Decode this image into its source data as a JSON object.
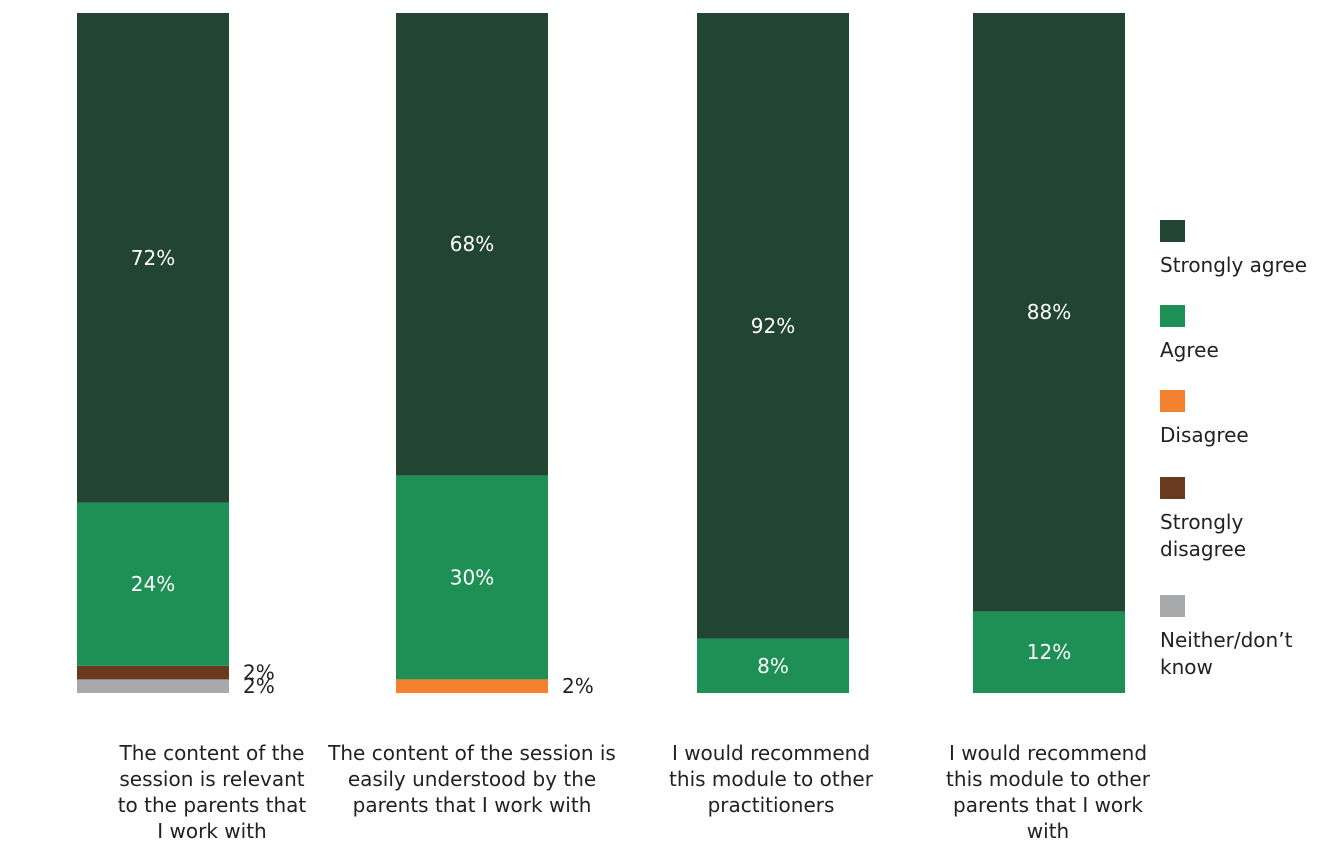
{
  "chart_data": {
    "type": "bar",
    "stacked": true,
    "categories": [
      "The content of the session is relevant to the parents that I work with",
      "The content of the session is easily understood by the parents that I work with",
      "I would recommend this module to other practitioners",
      "I would recommend this module to other parents that I work with"
    ],
    "series": [
      {
        "name": "Neither/don’t know",
        "color": "#a8a9ab",
        "values": [
          2,
          0,
          0,
          0
        ],
        "labels": [
          "2%",
          "",
          "",
          ""
        ]
      },
      {
        "name": "Strongly disagree",
        "color": "#6a3a1e",
        "values": [
          2,
          0,
          0,
          0
        ],
        "labels": [
          "2%",
          "",
          "",
          ""
        ]
      },
      {
        "name": "Disagree",
        "color": "#f4812f",
        "values": [
          0,
          2,
          0,
          0
        ],
        "labels": [
          "",
          "2%",
          "",
          ""
        ]
      },
      {
        "name": "Agree",
        "color": "#1e8f55",
        "values": [
          24,
          30,
          8,
          12
        ],
        "labels": [
          "24%",
          "30%",
          "8%",
          "12%"
        ]
      },
      {
        "name": "Strongly agree",
        "color": "#224433",
        "values": [
          72,
          68,
          92,
          88
        ],
        "labels": [
          "72%",
          "68%",
          "92%",
          "88%"
        ]
      }
    ],
    "ylim": [
      0,
      100
    ],
    "legend_position": "right",
    "grid": false
  },
  "legend": [
    {
      "label": "Strongly agree",
      "color": "#224433"
    },
    {
      "label": "Agree",
      "color": "#1e8f55"
    },
    {
      "label": "Disagree",
      "color": "#f4812f"
    },
    {
      "label": "Strongly disagree",
      "color": "#6a3a1e"
    },
    {
      "label": "Neither/don’t know",
      "color": "#a8a9ab"
    }
  ],
  "category_labels": [
    "The content of the session is relevant to the parents that I work with",
    "The content of the session is easily understood by the parents that I work with",
    "I would recommend this module to other practitioners",
    "I would recommend this module to other parents that I work with"
  ]
}
